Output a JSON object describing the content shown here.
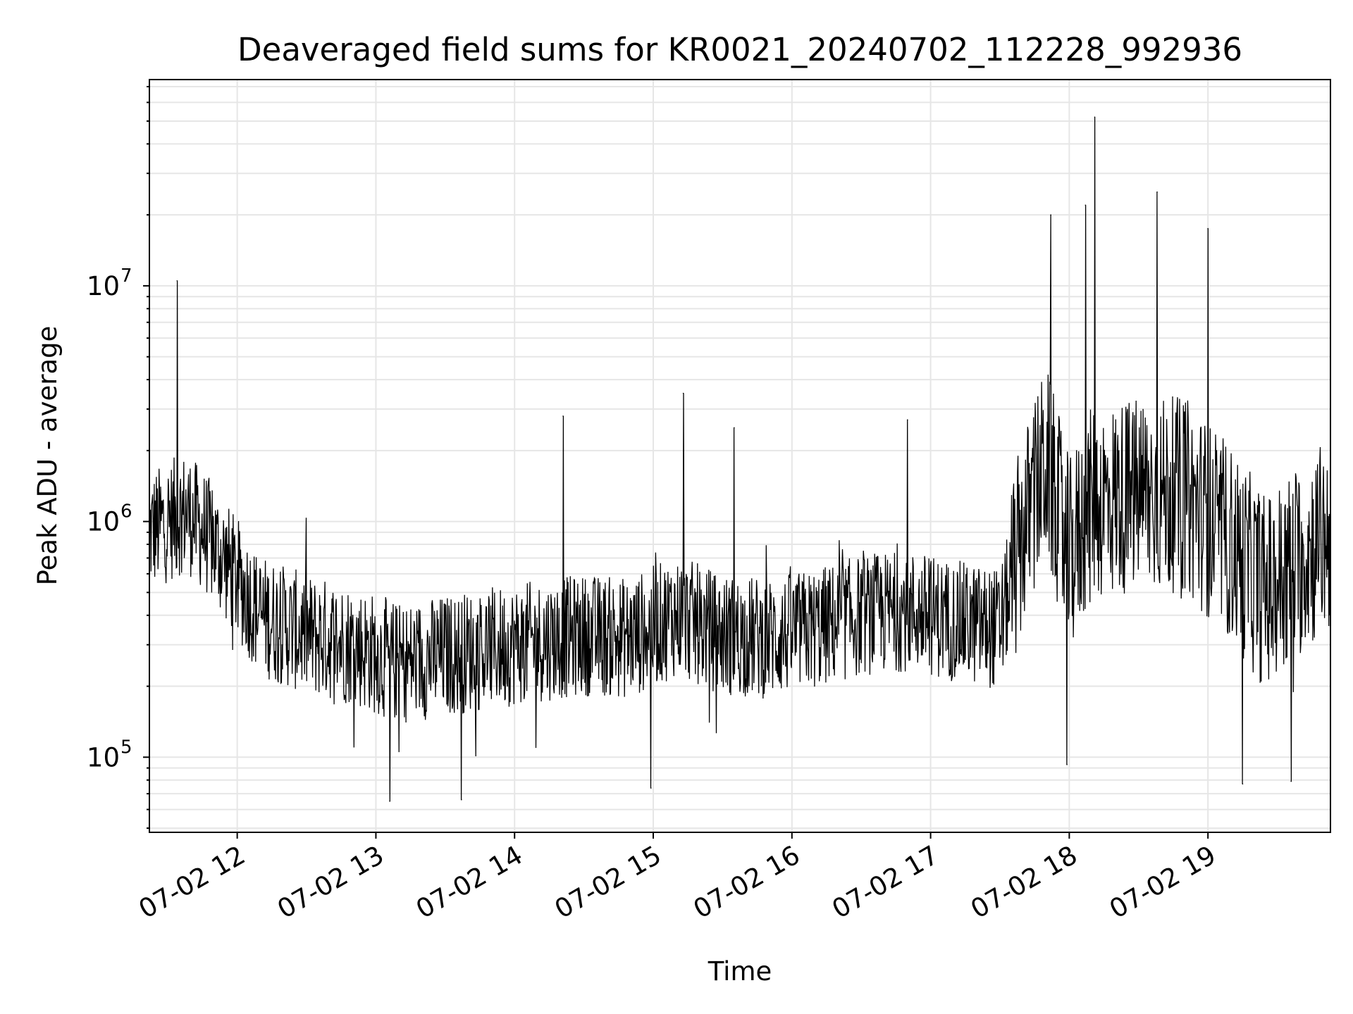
{
  "chart_data": {
    "type": "line",
    "title": "Deaveraged field sums for KR0021_20240702_112228_992936",
    "xlabel": "Time",
    "ylabel": "Peak ADU - average",
    "y_scale": "log",
    "xlim": [
      "07-02 11:22",
      "07-02 19:53"
    ],
    "ylim": [
      48000,
      75000000
    ],
    "x_ticks": [
      "07-02 12",
      "07-02 13",
      "07-02 14",
      "07-02 15",
      "07-02 16",
      "07-02 17",
      "07-02 18",
      "07-02 19"
    ],
    "y_ticks": [
      {
        "value": 100000,
        "base": "10",
        "exp": "5"
      },
      {
        "value": 1000000,
        "base": "10",
        "exp": "6"
      },
      {
        "value": 10000000,
        "base": "10",
        "exp": "7"
      }
    ],
    "grid": "on (major and minor)",
    "line_color": "#000000",
    "series": [
      {
        "x": [
          "07-02 11:22",
          "07-02 11:30",
          "07-02 11:38",
          "07-02 11:46",
          "07-02 11:54",
          "07-02 12:10",
          "07-02 12:30",
          "07-02 12:50",
          "07-02 13:10",
          "07-02 13:30",
          "07-02 13:50",
          "07-02 14:10",
          "07-02 14:30",
          "07-02 14:50",
          "07-02 15:10",
          "07-02 15:30",
          "07-02 15:50",
          "07-02 16:10",
          "07-02 16:30",
          "07-02 16:50",
          "07-02 17:10",
          "07-02 17:30",
          "07-02 17:40",
          "07-02 17:50",
          "07-02 18:00",
          "07-02 18:10",
          "07-02 18:30",
          "07-02 18:50",
          "07-02 19:10",
          "07-02 19:25",
          "07-02 19:40",
          "07-02 19:53"
        ],
        "values": [
          900000,
          1000000,
          1100000,
          900000,
          700000,
          400000,
          330000,
          300000,
          250000,
          270000,
          290000,
          310000,
          330000,
          320000,
          400000,
          330000,
          320000,
          350000,
          400000,
          420000,
          380000,
          350000,
          900000,
          1800000,
          700000,
          1200000,
          1300000,
          1300000,
          800000,
          500000,
          700000,
          900000
        ],
        "peaks": [
          {
            "x": "07-02 11:34",
            "value": 10500000
          },
          {
            "x": "07-02 14:21",
            "value": 2800000
          },
          {
            "x": "07-02 15:13",
            "value": 3500000
          },
          {
            "x": "07-02 15:35",
            "value": 2500000
          },
          {
            "x": "07-02 16:50",
            "value": 2700000
          },
          {
            "x": "07-02 17:52",
            "value": 20000000
          },
          {
            "x": "07-02 18:07",
            "value": 22000000
          },
          {
            "x": "07-02 18:11",
            "value": 52000000
          },
          {
            "x": "07-02 18:38",
            "value": 25000000
          },
          {
            "x": "07-02 19:00",
            "value": 17500000
          }
        ],
        "troughs": [
          {
            "x": "07-02 13:06",
            "value": 65000
          },
          {
            "x": "07-02 13:37",
            "value": 66000
          },
          {
            "x": "07-02 14:59",
            "value": 74000
          },
          {
            "x": "07-02 17:59",
            "value": 93000
          },
          {
            "x": "07-02 19:15",
            "value": 77000
          },
          {
            "x": "07-02 19:36",
            "value": 79000
          }
        ]
      }
    ]
  }
}
